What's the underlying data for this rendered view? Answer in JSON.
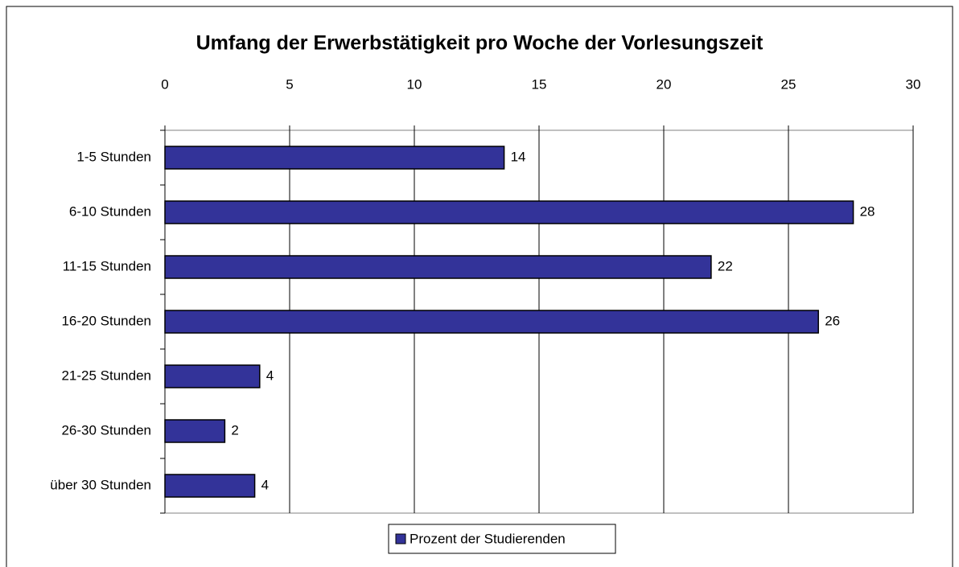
{
  "chart_data": {
    "type": "bar",
    "orientation": "horizontal",
    "title": "Umfang der Erwerbstätigkeit pro Woche der Vorlesungszeit",
    "categories": [
      "1-5 Stunden",
      "6-10 Stunden",
      "11-15 Stunden",
      "16-20 Stunden",
      "21-25 Stunden",
      "26-30 Stunden",
      "über 30 Stunden"
    ],
    "series": [
      {
        "name": "Prozent der Studierenden",
        "color": "#333399",
        "values": [
          13.6,
          27.6,
          21.9,
          26.2,
          3.8,
          2.4,
          3.6
        ],
        "value_labels": [
          "14",
          "28",
          "22",
          "26",
          "4",
          "2",
          "4"
        ]
      }
    ],
    "xlim": [
      0,
      30
    ],
    "xticks": [
      0,
      5,
      10,
      15,
      20,
      25,
      30
    ],
    "grid": true,
    "legend": "bottom"
  }
}
